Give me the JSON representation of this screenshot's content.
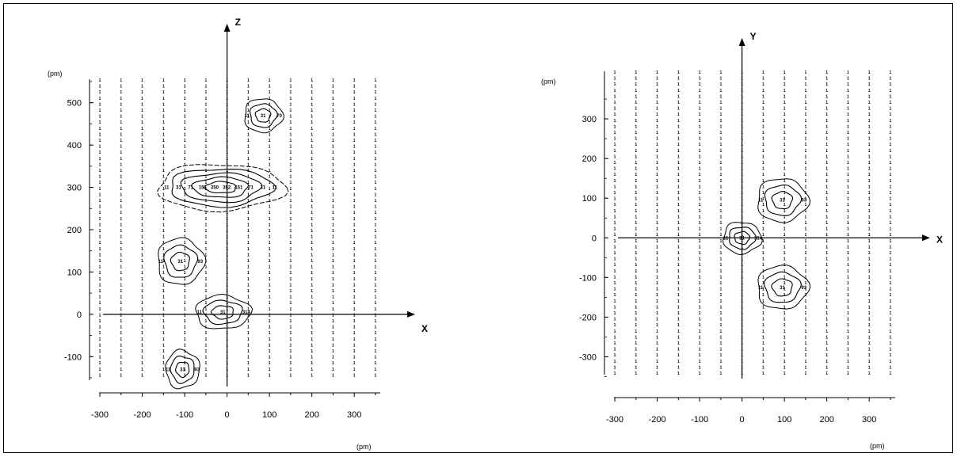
{
  "chart_data": [
    {
      "type": "contour",
      "plane": "XZ",
      "xlabel": "X",
      "ylabel": "Z",
      "x_unit": "(pm)",
      "y_unit": "(pm)",
      "xlim": [
        -330,
        380
      ],
      "ylim": [
        -165,
        565
      ],
      "x_ticks": [
        -300,
        -200,
        -100,
        0,
        100,
        200,
        300
      ],
      "y_ticks": [
        -100,
        0,
        100,
        200,
        300,
        400,
        500
      ],
      "grid_columns_x": [
        -300,
        -250,
        -200,
        -150,
        -100,
        -50,
        0,
        50,
        100,
        150,
        200,
        250,
        300,
        350
      ],
      "background_value": "1",
      "peaks": [
        {
          "x": -15,
          "y": 300,
          "rx": 150,
          "ry": 55,
          "levels": 4,
          "labels": [
            "11",
            "31",
            "71",
            "151",
            "350",
            "352",
            "151",
            "71",
            "31",
            "11"
          ]
        },
        {
          "x": 85,
          "y": 470,
          "rx": 45,
          "ry": 40,
          "levels": 2,
          "labels": [
            "11",
            "31",
            "70"
          ]
        },
        {
          "x": -110,
          "y": 125,
          "rx": 55,
          "ry": 55,
          "levels": 2,
          "labels": [
            "11",
            "31",
            "93"
          ]
        },
        {
          "x": -10,
          "y": 5,
          "rx": 65,
          "ry": 40,
          "levels": 2,
          "labels": [
            "11",
            "31",
            "314"
          ]
        },
        {
          "x": -105,
          "y": -130,
          "rx": 40,
          "ry": 45,
          "levels": 2,
          "labels": [
            "11",
            "31",
            "93"
          ]
        }
      ]
    },
    {
      "type": "contour",
      "plane": "XY",
      "xlabel": "X",
      "ylabel": "Y",
      "x_unit": "(pm)",
      "y_unit": "(pm)",
      "xlim": [
        -330,
        380
      ],
      "ylim": [
        -355,
        430
      ],
      "x_ticks": [
        -300,
        -200,
        -100,
        0,
        100,
        200,
        300
      ],
      "y_ticks": [
        -300,
        -200,
        -100,
        0,
        100,
        200,
        300
      ],
      "grid_columns_x": [
        -300,
        -250,
        -200,
        -150,
        -100,
        -50,
        0,
        50,
        100,
        150,
        200,
        250,
        300,
        350
      ],
      "background_value": "1",
      "peaks": [
        {
          "x": 0,
          "y": 0,
          "rx": 45,
          "ry": 40,
          "levels": 2,
          "labels": [
            "11",
            "31",
            "314"
          ]
        },
        {
          "x": 95,
          "y": 95,
          "rx": 60,
          "ry": 55,
          "levels": 2,
          "labels": [
            "11",
            "31",
            "93"
          ]
        },
        {
          "x": 95,
          "y": -125,
          "rx": 60,
          "ry": 55,
          "levels": 2,
          "labels": [
            "11",
            "31",
            "93"
          ]
        }
      ]
    }
  ]
}
